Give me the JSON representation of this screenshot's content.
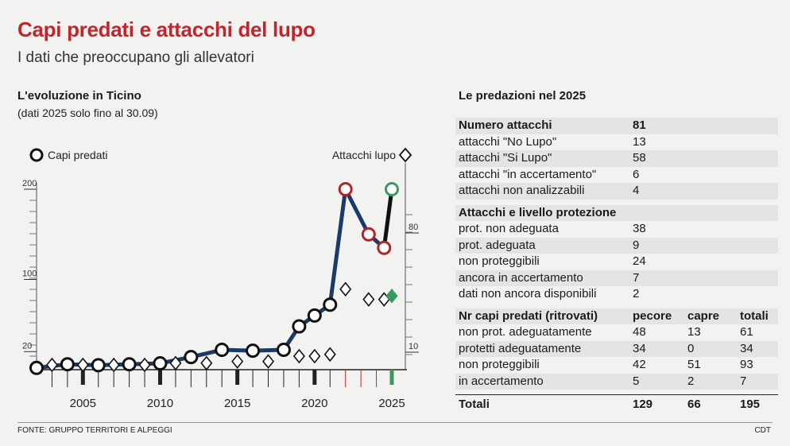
{
  "header": {
    "title": "Capi predati e attacchi del lupo",
    "subtitle": "I dati che preoccupano gli allevatori"
  },
  "left": {
    "section_title": "L'evoluzione in Ticino",
    "note": "(dati 2025 solo fino al 30.09)"
  },
  "right": {
    "section_title": "Le predazioni nel 2025"
  },
  "colors": {
    "title_red": "#c0262c",
    "line_blue": "#1b3a66",
    "highlight_green": "#3a9a5e",
    "row_shade": "#e4e4e2"
  },
  "chart_data": {
    "type": "line",
    "title": "L'evoluzione in Ticino",
    "legend_left": "Capi predati",
    "legend_right": "Attacchi lupo",
    "left_axis": {
      "ticks": [
        20,
        100,
        200
      ],
      "ylim": [
        0,
        210
      ]
    },
    "right_axis": {
      "ticks": [
        10,
        80
      ],
      "ylim": [
        0,
        100
      ]
    },
    "x_tick_labels": [
      "2005",
      "2010",
      "2015",
      "2020",
      "2025"
    ],
    "series": [
      {
        "name": "Capi predati",
        "x": [
          2002,
          2004,
          2006,
          2008,
          2010,
          2012,
          2014,
          2016,
          2018,
          2019,
          2020,
          2021,
          2022,
          2023.5,
          2024.5,
          2025
        ],
        "values": [
          2,
          6,
          5,
          6,
          7,
          14,
          22,
          21,
          22,
          48,
          60,
          72,
          200,
          150,
          135,
          200
        ]
      },
      {
        "name": "Attacchi lupo",
        "x": [
          2003,
          2005,
          2007,
          2009,
          2011,
          2013,
          2015,
          2017,
          2019,
          2020,
          2021,
          2022,
          2023.5,
          2024.5,
          2025
        ],
        "values": [
          1,
          1,
          1,
          1,
          2,
          2,
          3,
          3,
          6,
          6,
          7,
          47,
          41,
          41,
          43
        ]
      }
    ]
  },
  "table": {
    "numero_attacchi": {
      "header": [
        "Numero attacchi",
        "81"
      ],
      "rows": [
        [
          "attacchi \"No Lupo\"",
          "13"
        ],
        [
          "attacchi \"Si Lupo\"",
          "58"
        ],
        [
          "attacchi \"in accertamento\"",
          "6"
        ],
        [
          "attacchi non analizzabili",
          "4"
        ]
      ]
    },
    "protezione": {
      "header": "Attacchi e livello protezione",
      "rows": [
        [
          "prot. non adeguata",
          "38"
        ],
        [
          "prot. adeguata",
          "9"
        ],
        [
          "non proteggibili",
          "24"
        ],
        [
          "ancora in accertamento",
          "7"
        ],
        [
          "dati non ancora disponibili",
          "2"
        ]
      ]
    },
    "capi": {
      "header": [
        "Nr capi predati (ritrovati)",
        "pecore",
        "capre",
        "totali"
      ],
      "rows": [
        [
          "non prot. adeguatamente",
          "48",
          "13",
          "61"
        ],
        [
          "protetti adeguatamente",
          "34",
          "0",
          "34"
        ],
        [
          "non proteggibili",
          "42",
          "51",
          "93"
        ],
        [
          "in accertamento",
          "5",
          "2",
          "7"
        ]
      ],
      "total": [
        "Totali",
        "129",
        "66",
        "195"
      ]
    }
  },
  "footer": {
    "source": "FONTE: GRUPPO TERRITORI E ALPEGGI",
    "credit": "CDT"
  }
}
